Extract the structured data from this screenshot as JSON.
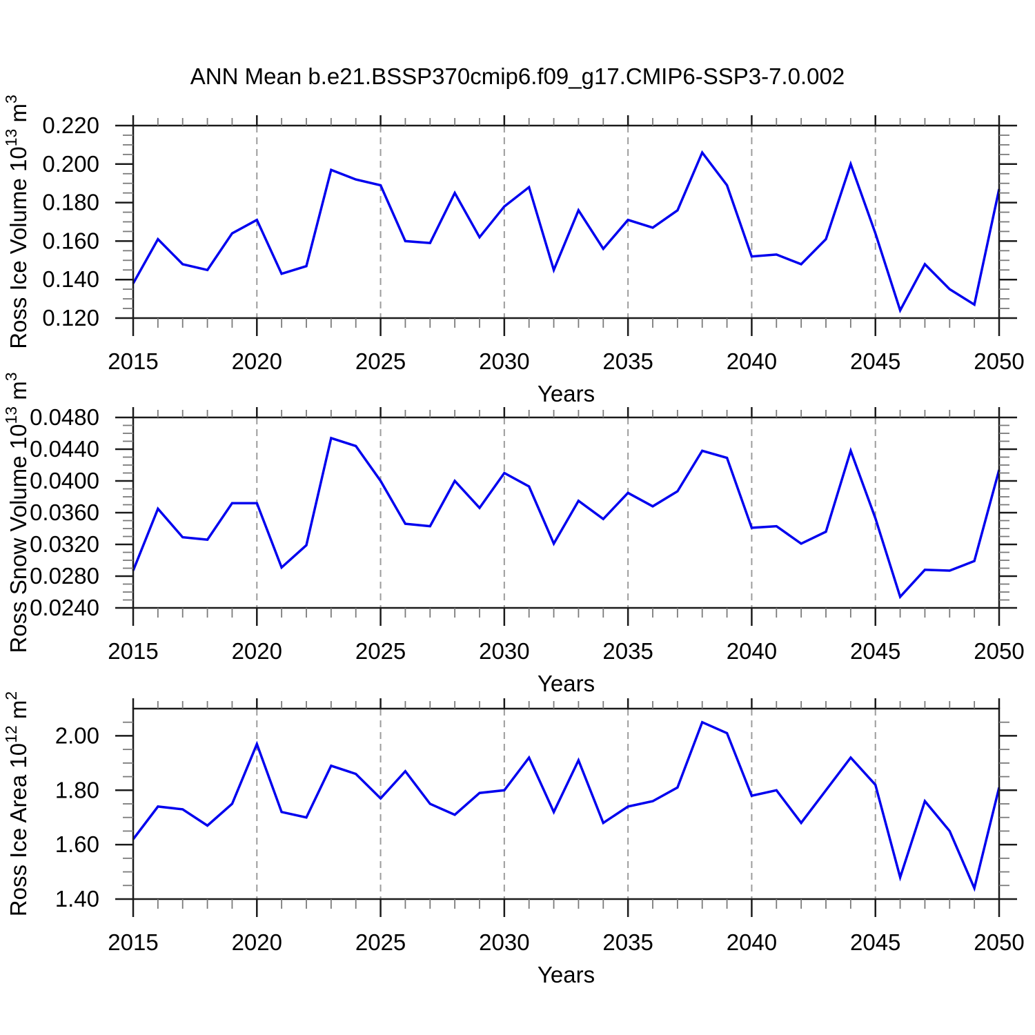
{
  "title": "ANN Mean b.e21.BSSP370cmip6.f09_g17.CMIP6-SSP3-7.0.002",
  "colors": {
    "line": "#0000ee",
    "frame": "#1a1a1a",
    "grid": "#9c9c9c",
    "minor_tick": "#7a7a7a",
    "text": "#000000",
    "background": "#ffffff"
  },
  "x_axis": {
    "label": "Years",
    "range": [
      2015,
      2050
    ],
    "major_ticks": [
      2015,
      2020,
      2025,
      2030,
      2035,
      2040,
      2045,
      2050
    ],
    "minor_step": 1,
    "grid_years": [
      2020,
      2025,
      2030,
      2035,
      2040,
      2045
    ],
    "grid_style": "dashed"
  },
  "chart_data": [
    {
      "id": "ross-ice-volume",
      "type": "line",
      "ylabel": "Ross Ice Volume 10^13 m^3",
      "ylabel_segments": [
        {
          "t": "Ross Ice Volume 10"
        },
        {
          "t": "13",
          "sup": true
        },
        {
          "t": " m"
        },
        {
          "t": "3",
          "sup": true
        }
      ],
      "xlabel": "Years",
      "ylim": [
        0.12,
        0.22
      ],
      "yticks": [
        0.12,
        0.14,
        0.16,
        0.18,
        0.2,
        0.22
      ],
      "ytick_decimals": 3,
      "minor_step": 0.005,
      "grid": true,
      "legend": "none",
      "years": [
        2015,
        2016,
        2017,
        2018,
        2019,
        2020,
        2021,
        2022,
        2023,
        2024,
        2025,
        2026,
        2027,
        2028,
        2029,
        2030,
        2031,
        2032,
        2033,
        2034,
        2035,
        2036,
        2037,
        2038,
        2039,
        2040,
        2041,
        2042,
        2043,
        2044,
        2045,
        2046,
        2047,
        2048,
        2049,
        2050
      ],
      "values": [
        0.138,
        0.161,
        0.148,
        0.145,
        0.164,
        0.171,
        0.143,
        0.147,
        0.197,
        0.192,
        0.189,
        0.16,
        0.159,
        0.185,
        0.162,
        0.178,
        0.188,
        0.145,
        0.176,
        0.156,
        0.171,
        0.167,
        0.176,
        0.206,
        0.189,
        0.152,
        0.153,
        0.148,
        0.161,
        0.2,
        0.164,
        0.124,
        0.148,
        0.135,
        0.127,
        0.187
      ]
    },
    {
      "id": "ross-snow-volume",
      "type": "line",
      "ylabel": "Ross Snow Volume 10^13 m^3",
      "ylabel_segments": [
        {
          "t": "Ross Snow Volume 10"
        },
        {
          "t": "13",
          "sup": true
        },
        {
          "t": " m"
        },
        {
          "t": "3",
          "sup": true
        }
      ],
      "xlabel": "Years",
      "ylim": [
        0.024,
        0.048
      ],
      "yticks": [
        0.024,
        0.028,
        0.032,
        0.036,
        0.04,
        0.044,
        0.048
      ],
      "ytick_decimals": 4,
      "minor_step": 0.001,
      "grid": true,
      "legend": "none",
      "years": [
        2015,
        2016,
        2017,
        2018,
        2019,
        2020,
        2021,
        2022,
        2023,
        2024,
        2025,
        2026,
        2027,
        2028,
        2029,
        2030,
        2031,
        2032,
        2033,
        2034,
        2035,
        2036,
        2037,
        2038,
        2039,
        2040,
        2041,
        2042,
        2043,
        2044,
        2045,
        2046,
        2047,
        2048,
        2049,
        2050
      ],
      "values": [
        0.0287,
        0.0365,
        0.0329,
        0.0326,
        0.0372,
        0.0372,
        0.0291,
        0.0319,
        0.0454,
        0.0444,
        0.04,
        0.0346,
        0.0343,
        0.04,
        0.0366,
        0.041,
        0.0393,
        0.0321,
        0.0375,
        0.0352,
        0.0385,
        0.0368,
        0.0387,
        0.0438,
        0.0429,
        0.0341,
        0.0343,
        0.0321,
        0.0336,
        0.0438,
        0.0353,
        0.0254,
        0.0288,
        0.0287,
        0.0299,
        0.0414
      ]
    },
    {
      "id": "ross-ice-area",
      "type": "line",
      "ylabel": "Ross Ice Area 10^12 m^2",
      "ylabel_segments": [
        {
          "t": "Ross Ice Area 10"
        },
        {
          "t": "12",
          "sup": true
        },
        {
          "t": " m"
        },
        {
          "t": "2",
          "sup": true
        }
      ],
      "xlabel": "Years",
      "ylim": [
        1.4,
        2.1
      ],
      "yticks": [
        1.4,
        1.6,
        1.8,
        2.0
      ],
      "ytick_decimals": 2,
      "minor_step": 0.05,
      "grid": true,
      "legend": "none",
      "years": [
        2015,
        2016,
        2017,
        2018,
        2019,
        2020,
        2021,
        2022,
        2023,
        2024,
        2025,
        2026,
        2027,
        2028,
        2029,
        2030,
        2031,
        2032,
        2033,
        2034,
        2035,
        2036,
        2037,
        2038,
        2039,
        2040,
        2041,
        2042,
        2043,
        2044,
        2045,
        2046,
        2047,
        2048,
        2049,
        2050
      ],
      "values": [
        1.62,
        1.74,
        1.73,
        1.67,
        1.75,
        1.97,
        1.72,
        1.7,
        1.89,
        1.86,
        1.77,
        1.87,
        1.75,
        1.71,
        1.79,
        1.8,
        1.92,
        1.72,
        1.91,
        1.68,
        1.74,
        1.76,
        1.81,
        2.05,
        2.01,
        1.78,
        1.8,
        1.68,
        1.8,
        1.92,
        1.82,
        1.48,
        1.76,
        1.65,
        1.44,
        1.81
      ]
    }
  ]
}
